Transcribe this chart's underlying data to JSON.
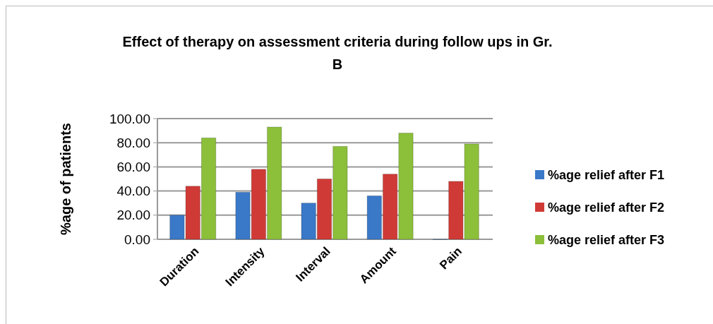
{
  "chart_data": {
    "type": "bar",
    "title": "Effect of therapy on assessment criteria during follow ups in Gr. B",
    "ylabel": "%age of patients",
    "categories": [
      "Duration",
      "Intensity",
      "Interval",
      "Amount",
      "Pain"
    ],
    "series": [
      {
        "name": "%age relief after F1",
        "color": "#3a78c8",
        "values": [
          20,
          39,
          30,
          36,
          0
        ]
      },
      {
        "name": "%age relief after F2",
        "color": "#d03a36",
        "values": [
          44,
          58,
          50,
          54,
          48
        ]
      },
      {
        "name": "%age relief after F3",
        "color": "#8cbf3a",
        "values": [
          84,
          93,
          77,
          88,
          79
        ]
      }
    ],
    "ylim": [
      0,
      100
    ],
    "yticks": [
      {
        "value": 0,
        "label": "0.00"
      },
      {
        "value": 20,
        "label": "20.00"
      },
      {
        "value": 40,
        "label": "40.00"
      },
      {
        "value": 60,
        "label": "60.00"
      },
      {
        "value": 80,
        "label": "80.00"
      },
      {
        "value": 100,
        "label": "100.00"
      }
    ],
    "grid": "y",
    "legend": "right"
  }
}
